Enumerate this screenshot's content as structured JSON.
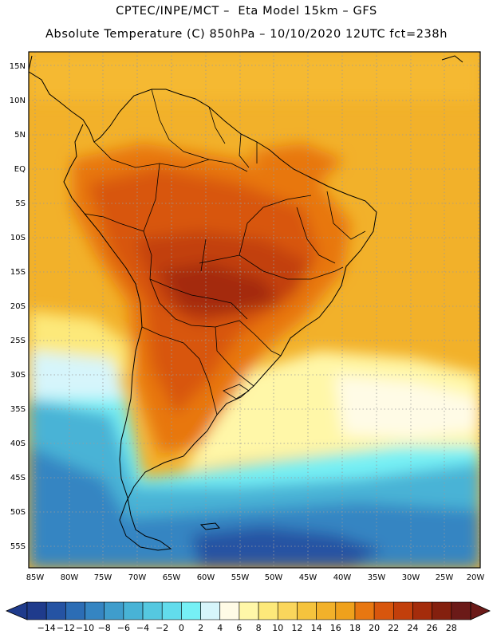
{
  "header": {
    "line1": "CPTEC/INPE/MCT –  Eta Model 15km – GFS",
    "line2": "Absolute Temperature (C) 850hPa – 10/10/2020 12UTC fct=238h"
  },
  "map": {
    "lat_labels": [
      "15N",
      "10N",
      "5N",
      "EQ",
      "5S",
      "10S",
      "15S",
      "20S",
      "25S",
      "30S",
      "35S",
      "40S",
      "45S",
      "50S",
      "55S"
    ],
    "lon_labels": [
      "85W",
      "80W",
      "75W",
      "70W",
      "65W",
      "60W",
      "55W",
      "50W",
      "45W",
      "40W",
      "35W",
      "30W",
      "25W",
      "20W"
    ]
  },
  "colorbar": {
    "labels": [
      "-14",
      "-12",
      "-10",
      "-8",
      "-6",
      "-4",
      "-2",
      "0",
      "2",
      "4",
      "6",
      "8",
      "10",
      "12",
      "14",
      "16",
      "18",
      "20",
      "22",
      "24",
      "26",
      "28"
    ],
    "colors": [
      "#1f3b8c",
      "#2553a3",
      "#2c6db5",
      "#3585c2",
      "#3f9dcc",
      "#48b3d6",
      "#55c8e0",
      "#62dcec",
      "#76f0f5",
      "#d6f5fb",
      "#fffbe6",
      "#fff7a8",
      "#fde97a",
      "#fad65c",
      "#f5c33d",
      "#f2b12a",
      "#efa11c",
      "#e87711",
      "#d8560d",
      "#c23f0b",
      "#a42c0b",
      "#84200e",
      "#6b1a18"
    ]
  }
}
